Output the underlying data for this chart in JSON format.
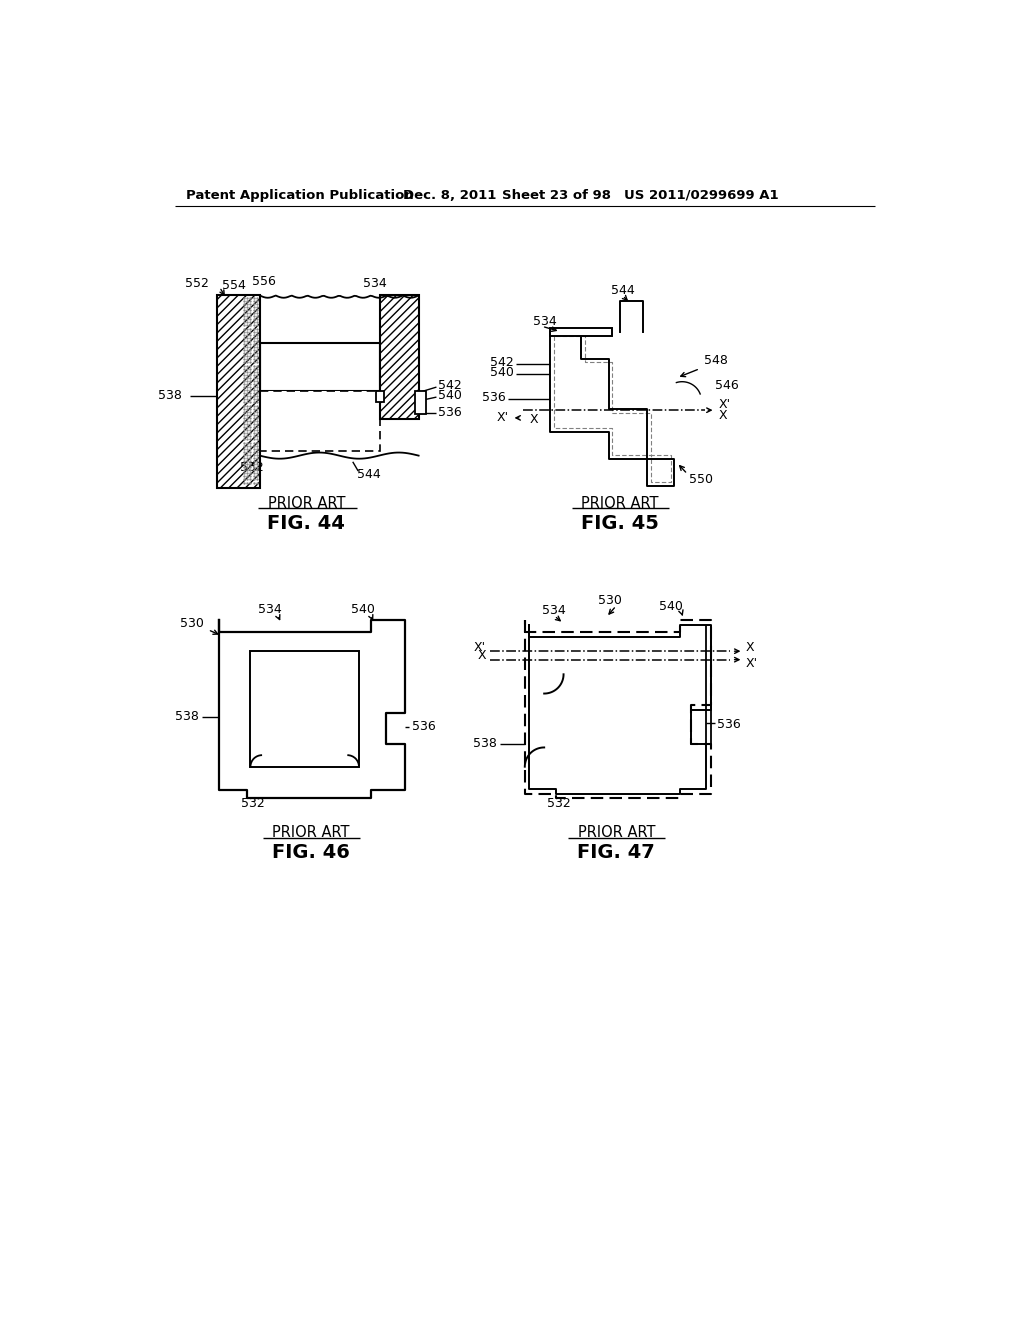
{
  "bg_color": "#ffffff",
  "header_text": "Patent Application Publication",
  "header_date": "Dec. 8, 2011",
  "header_sheet": "Sheet 23 of 98",
  "header_patent": "US 2011/0299699 A1",
  "fig44_label": "FIG. 44",
  "fig45_label": "FIG. 45",
  "fig46_label": "FIG. 46",
  "fig47_label": "FIG. 47",
  "prior_art": "PRIOR ART"
}
